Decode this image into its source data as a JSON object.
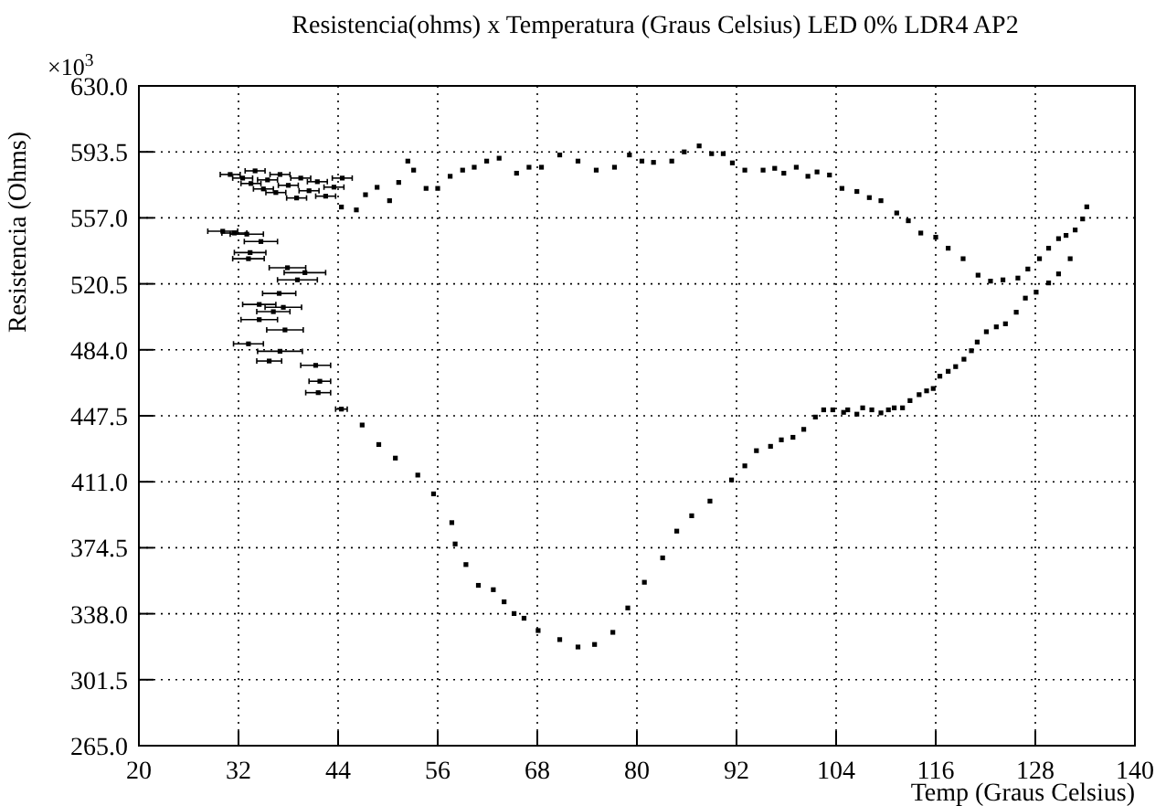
{
  "chart_data": {
    "type": "scatter",
    "title": "Resistencia(ohms) x Temperatura (Graus Celsius) LED 0% LDR4 AP2",
    "xlabel": "Temp (Graus Celsius)",
    "ylabel": "Resistencia (Ohms)",
    "annotations": [
      "×10$^{3}$"
    ],
    "xlim": [
      20,
      140
    ],
    "xticks": [
      20,
      32,
      44,
      56,
      68,
      80,
      92,
      104,
      116,
      128,
      140
    ],
    "ylim": [
      265,
      630
    ],
    "yticks": [
      {
        "value": 265,
        "label": "265.0"
      },
      {
        "value": 301.5,
        "label": "301.5"
      },
      {
        "value": 338,
        "label": "338.0"
      },
      {
        "value": 374.5,
        "label": "374.5"
      },
      {
        "value": 411,
        "label": "411.0"
      },
      {
        "value": 447.5,
        "label": "447.5"
      },
      {
        "value": 484,
        "label": "484.0"
      },
      {
        "value": 520.5,
        "label": "520.5"
      },
      {
        "value": 557,
        "label": "557.0"
      },
      {
        "value": 593.5,
        "label": "593.5"
      },
      {
        "value": 630,
        "label": "630.0"
      }
    ],
    "grid": true,
    "marker": "square",
    "series": [
      {
        "color": "#000000",
        "x": [
          30.1,
          31.5,
          33,
          34.7,
          33.4,
          33.2,
          40,
          37.9,
          39.1,
          36.9,
          34.5,
          36.2,
          37.4,
          34.5,
          37.6,
          33.2,
          37,
          35.7,
          41.3,
          41.8,
          41.6,
          44.4,
          31,
          32.5,
          33.5,
          34,
          35,
          35.5,
          36.5,
          37,
          38,
          39,
          39.5,
          40.5,
          41.5,
          42.5,
          43.5,
          44.5,
          44.4,
          46.2,
          47.3,
          48.7,
          50.2,
          51.3,
          52.4,
          53.1,
          54.6,
          56,
          57.5,
          59,
          60.4,
          61.9,
          63.4,
          65.5,
          67,
          68.5,
          70.7,
          72.9,
          75.1,
          77.3,
          79.1,
          80.6,
          82,
          84.2,
          85.7,
          87.5,
          89,
          90.4,
          91.5,
          93,
          95.2,
          96.6,
          97.7,
          99.2,
          100.6,
          101.7,
          103.2,
          104.7,
          106.5,
          108,
          109.4,
          111.3,
          112.7,
          114.2,
          116,
          117.5,
          119.3,
          121.1,
          122.6,
          124.1,
          125.9,
          127.1,
          128.5,
          129.6,
          130.8,
          131.7,
          132.8,
          133.7,
          134.2,
          132.2,
          130.8,
          129.6,
          128.1,
          126.8,
          125.7,
          124.4,
          123.3,
          122.1,
          121,
          120.3,
          119.4,
          118.4,
          117.5,
          116.5,
          115.7,
          114.9,
          114,
          112.9,
          112,
          111,
          110.3,
          109.4,
          108.3,
          107.2,
          106.5,
          105.4,
          104.9,
          103.6,
          102.5,
          101.5,
          100.1,
          98.8,
          97.4,
          96.1,
          94.4,
          93,
          91.4,
          88.8,
          86.6,
          84.8,
          83.1,
          80.9,
          78.9,
          77.1,
          74.9,
          72.9,
          70.7,
          68.1,
          66.4,
          65.2,
          64,
          62.7,
          60.9,
          59.4,
          58.1,
          57.7,
          55.5,
          53.6,
          50.9,
          48.9,
          46.9
        ],
        "values": [
          549.6,
          548.6,
          548,
          543.9,
          537.8,
          534.4,
          526.7,
          529.4,
          522.7,
          515.2,
          509.1,
          505.1,
          507.5,
          500.7,
          495,
          487.3,
          483.2,
          477.8,
          475.4,
          466.6,
          460.3,
          451.2,
          581,
          579,
          576,
          583,
          573,
          578,
          571,
          581,
          575,
          568,
          579,
          572,
          577,
          569,
          574,
          579,
          563,
          561.4,
          569.8,
          573.9,
          566.5,
          576.6,
          588.4,
          583.4,
          573.3,
          573.3,
          580,
          583.4,
          585,
          588.4,
          590,
          581.7,
          585,
          585,
          591.8,
          588.4,
          583.4,
          585,
          591.8,
          588.4,
          587.7,
          588.4,
          593.5,
          596.8,
          592.5,
          592.5,
          587.4,
          583.4,
          583.4,
          584.4,
          581.7,
          585,
          580,
          582.4,
          580.7,
          573.3,
          571.6,
          568.2,
          566.5,
          559.7,
          555.4,
          548.6,
          546.3,
          540.2,
          534.4,
          525.3,
          522,
          522.7,
          523.7,
          528.7,
          534.4,
          540.2,
          545.5,
          547.3,
          550.3,
          556.4,
          563.1,
          534.4,
          526,
          521,
          515.9,
          512.6,
          504.8,
          498.4,
          496.7,
          494,
          488.3,
          483.5,
          478.8,
          474.7,
          472.1,
          469.4,
          462.6,
          461.3,
          459.2,
          455.9,
          451.9,
          451.9,
          450.8,
          449.1,
          450.8,
          451.9,
          448.4,
          450.8,
          449.4,
          450.8,
          450.8,
          446.8,
          440,
          435.6,
          434.2,
          430.6,
          428.2,
          419.8,
          412,
          400.3,
          392.2,
          383.7,
          368.9,
          355.4,
          341.2,
          327.7,
          321,
          319.6,
          323.7,
          328.7,
          335.5,
          338.1,
          344.6,
          351.3,
          353.7,
          365.2,
          376.6,
          388.4,
          404.3,
          414.7,
          424.1,
          431.6,
          442.4
        ],
        "xerrors": [
          1.8,
          1.5,
          2,
          2,
          1.9,
          1.9,
          2.5,
          2.2,
          2.4,
          2,
          2,
          2,
          2.2,
          2.2,
          2.2,
          1.8,
          2.7,
          1.5,
          1.8,
          1.3,
          1.5,
          0.7,
          1.2,
          1.2,
          1.2,
          1.2,
          1.2,
          1.2,
          1.2,
          1.2,
          1.2,
          1.2,
          1.2,
          1.2,
          1.2,
          1.2,
          1.2,
          1.2,
          null,
          null,
          null,
          null,
          null,
          null,
          null,
          null,
          null,
          null,
          null,
          null,
          null,
          null,
          null,
          null,
          null,
          null,
          null,
          null,
          null,
          null,
          null,
          null,
          null,
          null,
          null,
          null,
          null,
          null,
          null,
          null,
          null,
          null,
          null,
          null,
          null,
          null,
          null,
          null,
          null,
          null,
          null,
          null,
          null,
          null,
          null,
          null,
          null,
          null,
          null,
          null,
          null,
          null,
          null,
          null,
          null,
          null,
          null,
          null,
          null,
          null,
          null,
          null,
          null,
          null,
          null,
          null,
          null,
          null,
          null,
          null,
          null,
          null,
          null,
          null,
          null,
          null,
          null,
          null,
          null,
          null,
          null,
          null,
          null,
          null,
          null,
          null,
          null,
          null,
          null,
          null,
          null,
          null,
          null,
          null,
          null,
          null,
          null,
          null,
          null,
          null,
          null,
          null,
          null,
          null,
          null,
          null,
          null,
          null,
          null,
          null,
          null,
          null,
          null,
          null,
          null,
          null,
          null,
          null,
          null,
          null,
          null
        ]
      }
    ]
  }
}
